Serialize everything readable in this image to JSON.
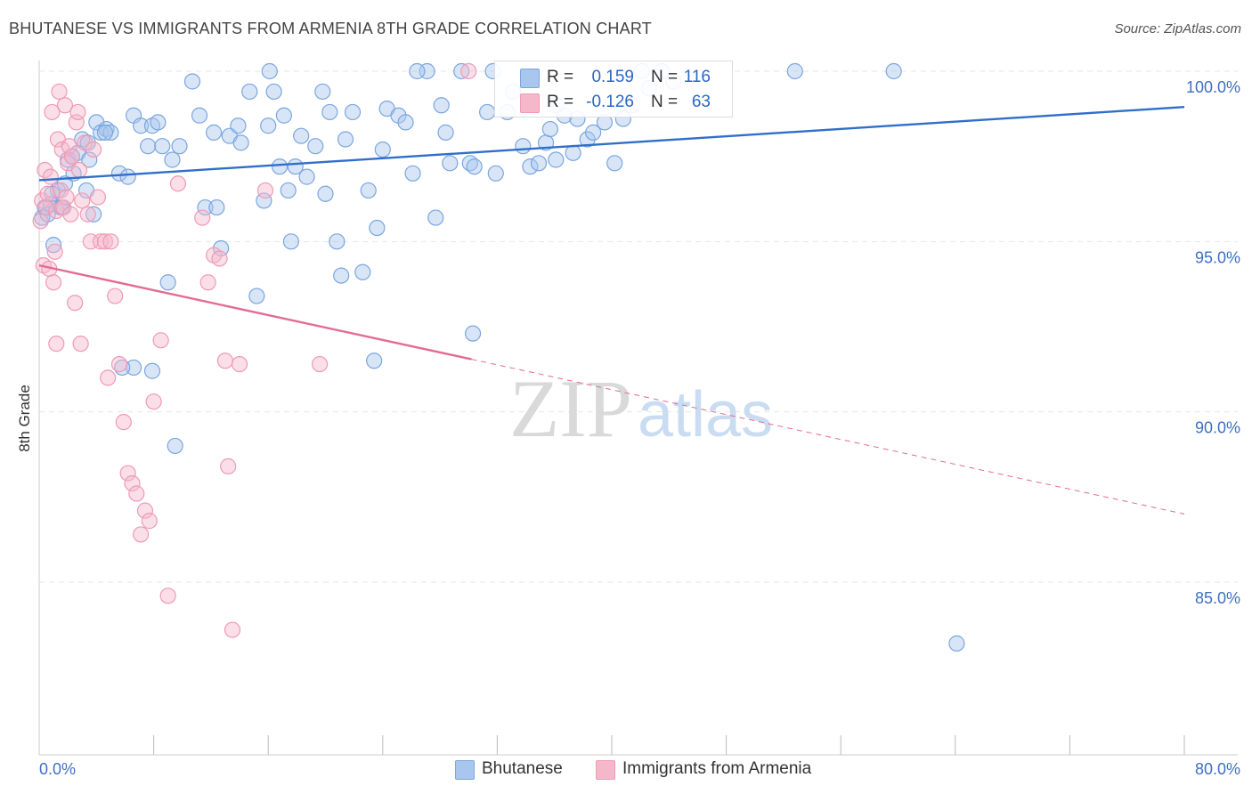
{
  "title": "BHUTANESE VS IMMIGRANTS FROM ARMENIA 8TH GRADE CORRELATION CHART",
  "source": "Source: ZipAtlas.com",
  "watermark": {
    "zip": "ZIP",
    "atlas": "atlas"
  },
  "legend": {
    "rows": [
      {
        "r_label": "R =",
        "r_value": "0.159",
        "n_label": "N =",
        "n_value": "116",
        "color": "#a9c6ee"
      },
      {
        "r_label": "R =",
        "r_value": "-0.126",
        "n_label": "N =",
        "n_value": "63",
        "color": "#f5b8cb"
      }
    ]
  },
  "bottom_legend": [
    {
      "label": "Bhutanese",
      "color": "#a9c6ee"
    },
    {
      "label": "Immigrants from Armenia",
      "color": "#f5b8cb"
    }
  ],
  "chart_data": {
    "type": "scatter",
    "title": "BHUTANESE VS IMMIGRANTS FROM ARMENIA 8TH GRADE CORRELATION CHART",
    "xlabel": "",
    "ylabel": "8th Grade",
    "xlim": [
      0,
      80
    ],
    "ylim": [
      80.5,
      100.8
    ],
    "x_tick_labels": [
      "0.0%",
      "80.0%"
    ],
    "y_ticks": [
      85,
      90,
      95,
      100
    ],
    "y_tick_labels": [
      "85.0%",
      "90.0%",
      "95.0%",
      "100.0%"
    ],
    "grid": true,
    "legend_position": "top-center",
    "series": [
      {
        "name": "Bhutanese",
        "color": "#7aa6e0",
        "trend": {
          "x": [
            0,
            80
          ],
          "y": [
            96.8,
            98.95
          ],
          "color": "#2f6fca",
          "dashed_from": null
        },
        "points": [
          [
            0.2,
            95.7
          ],
          [
            0.4,
            96.0
          ],
          [
            0.6,
            95.8
          ],
          [
            0.8,
            96.1
          ],
          [
            1.0,
            94.9
          ],
          [
            1.3,
            96.5
          ],
          [
            1.5,
            96.0
          ],
          [
            1.8,
            96.7
          ],
          [
            2.0,
            97.4
          ],
          [
            2.4,
            97.0
          ],
          [
            2.7,
            97.6
          ],
          [
            3.0,
            98.0
          ],
          [
            3.3,
            96.5
          ],
          [
            3.5,
            97.4
          ],
          [
            3.8,
            95.8
          ],
          [
            4.0,
            98.5
          ],
          [
            4.3,
            98.2
          ],
          [
            4.7,
            98.3
          ],
          [
            5.0,
            98.2
          ],
          [
            5.6,
            97.0
          ],
          [
            6.2,
            96.9
          ],
          [
            6.6,
            98.7
          ],
          [
            7.1,
            98.4
          ],
          [
            7.6,
            97.8
          ],
          [
            7.9,
            98.4
          ],
          [
            8.6,
            97.8
          ],
          [
            9.3,
            97.4
          ],
          [
            9.8,
            97.8
          ],
          [
            10.7,
            99.7
          ],
          [
            11.2,
            98.7
          ],
          [
            11.6,
            96.0
          ],
          [
            12.2,
            98.2
          ],
          [
            12.4,
            96.0
          ],
          [
            12.7,
            94.8
          ],
          [
            13.3,
            98.1
          ],
          [
            13.9,
            98.4
          ],
          [
            14.1,
            97.9
          ],
          [
            14.7,
            99.4
          ],
          [
            15.2,
            93.4
          ],
          [
            15.7,
            96.2
          ],
          [
            16.0,
            98.4
          ],
          [
            16.4,
            99.4
          ],
          [
            16.8,
            97.2
          ],
          [
            17.1,
            98.7
          ],
          [
            17.4,
            96.5
          ],
          [
            17.6,
            95.0
          ],
          [
            17.9,
            97.2
          ],
          [
            18.3,
            98.1
          ],
          [
            18.7,
            96.9
          ],
          [
            19.3,
            97.8
          ],
          [
            19.8,
            99.4
          ],
          [
            20.0,
            96.4
          ],
          [
            20.3,
            98.8
          ],
          [
            20.8,
            95.0
          ],
          [
            21.1,
            94.0
          ],
          [
            21.4,
            98.0
          ],
          [
            21.9,
            98.8
          ],
          [
            22.6,
            94.1
          ],
          [
            23.0,
            96.5
          ],
          [
            23.6,
            95.4
          ],
          [
            24.0,
            97.7
          ],
          [
            24.3,
            98.9
          ],
          [
            25.1,
            98.7
          ],
          [
            25.6,
            98.5
          ],
          [
            26.1,
            97.0
          ],
          [
            27.1,
            100.0
          ],
          [
            27.7,
            95.7
          ],
          [
            28.1,
            99.0
          ],
          [
            28.4,
            98.2
          ],
          [
            28.7,
            97.3
          ],
          [
            29.5,
            100.0
          ],
          [
            30.1,
            97.3
          ],
          [
            30.4,
            97.2
          ],
          [
            31.3,
            98.8
          ],
          [
            31.7,
            100.0
          ],
          [
            31.9,
            97.0
          ],
          [
            32.7,
            98.8
          ],
          [
            33.1,
            99.4
          ],
          [
            33.8,
            97.8
          ],
          [
            34.3,
            97.2
          ],
          [
            34.9,
            97.3
          ],
          [
            35.4,
            97.9
          ],
          [
            35.7,
            98.3
          ],
          [
            36.1,
            97.4
          ],
          [
            36.7,
            98.7
          ],
          [
            37.3,
            97.6
          ],
          [
            37.6,
            98.6
          ],
          [
            38.3,
            98.0
          ],
          [
            38.7,
            98.2
          ],
          [
            39.5,
            98.5
          ],
          [
            40.2,
            97.3
          ],
          [
            40.8,
            98.6
          ],
          [
            41.4,
            99.0
          ],
          [
            42.1,
            100.0
          ],
          [
            42.6,
            99.5
          ],
          [
            43.5,
            100.0
          ],
          [
            44.3,
            99.7
          ],
          [
            52.8,
            100.0
          ],
          [
            59.7,
            100.0
          ],
          [
            64.1,
            83.2
          ],
          [
            6.6,
            91.3
          ],
          [
            7.9,
            91.2
          ],
          [
            9.5,
            89.0
          ],
          [
            9.0,
            93.8
          ],
          [
            23.4,
            91.5
          ],
          [
            30.3,
            92.3
          ],
          [
            5.8,
            91.3
          ],
          [
            3.4,
            97.9
          ],
          [
            1.6,
            96.0
          ],
          [
            0.9,
            96.4
          ],
          [
            2.3,
            97.5
          ],
          [
            4.6,
            98.2
          ],
          [
            26.4,
            100.0
          ],
          [
            36.1,
            99.0
          ],
          [
            8.3,
            98.5
          ],
          [
            16.1,
            100.0
          ]
        ]
      },
      {
        "name": "Immigrants from Armenia",
        "color": "#f09ab4",
        "trend": {
          "x": [
            0,
            80
          ],
          "y": [
            94.3,
            87.0
          ],
          "color": "#e46b92",
          "dashed_from": 30.2
        },
        "points": [
          [
            0.1,
            95.6
          ],
          [
            0.2,
            96.2
          ],
          [
            0.3,
            94.3
          ],
          [
            0.4,
            97.1
          ],
          [
            0.5,
            96.0
          ],
          [
            0.6,
            96.4
          ],
          [
            0.7,
            94.2
          ],
          [
            0.8,
            96.9
          ],
          [
            0.9,
            98.8
          ],
          [
            1.0,
            93.8
          ],
          [
            1.1,
            94.7
          ],
          [
            1.2,
            95.9
          ],
          [
            1.3,
            98.0
          ],
          [
            1.4,
            99.4
          ],
          [
            1.5,
            96.5
          ],
          [
            1.6,
            97.7
          ],
          [
            1.7,
            96.0
          ],
          [
            1.8,
            99.0
          ],
          [
            1.9,
            96.3
          ],
          [
            2.0,
            97.3
          ],
          [
            2.1,
            97.8
          ],
          [
            2.2,
            95.8
          ],
          [
            2.3,
            97.5
          ],
          [
            2.5,
            93.2
          ],
          [
            2.6,
            98.5
          ],
          [
            2.7,
            98.8
          ],
          [
            2.8,
            97.1
          ],
          [
            3.0,
            96.2
          ],
          [
            3.2,
            97.9
          ],
          [
            3.4,
            95.8
          ],
          [
            3.6,
            95.0
          ],
          [
            3.8,
            97.7
          ],
          [
            4.1,
            96.3
          ],
          [
            4.3,
            95.0
          ],
          [
            4.6,
            95.0
          ],
          [
            5.0,
            95.0
          ],
          [
            5.3,
            93.4
          ],
          [
            5.6,
            91.4
          ],
          [
            5.9,
            89.7
          ],
          [
            6.2,
            88.2
          ],
          [
            6.5,
            87.9
          ],
          [
            6.8,
            87.6
          ],
          [
            7.1,
            86.4
          ],
          [
            7.4,
            87.1
          ],
          [
            7.7,
            86.8
          ],
          [
            8.0,
            90.3
          ],
          [
            8.5,
            92.1
          ],
          [
            9.0,
            84.6
          ],
          [
            9.7,
            96.7
          ],
          [
            11.4,
            95.7
          ],
          [
            11.8,
            93.8
          ],
          [
            12.2,
            94.6
          ],
          [
            12.6,
            94.5
          ],
          [
            13.0,
            91.5
          ],
          [
            13.2,
            88.4
          ],
          [
            13.5,
            83.6
          ],
          [
            14.0,
            91.4
          ],
          [
            15.8,
            96.5
          ],
          [
            19.6,
            91.4
          ],
          [
            30.0,
            100.0
          ],
          [
            1.2,
            92.0
          ],
          [
            2.9,
            92.0
          ],
          [
            4.8,
            91.0
          ]
        ]
      }
    ]
  }
}
